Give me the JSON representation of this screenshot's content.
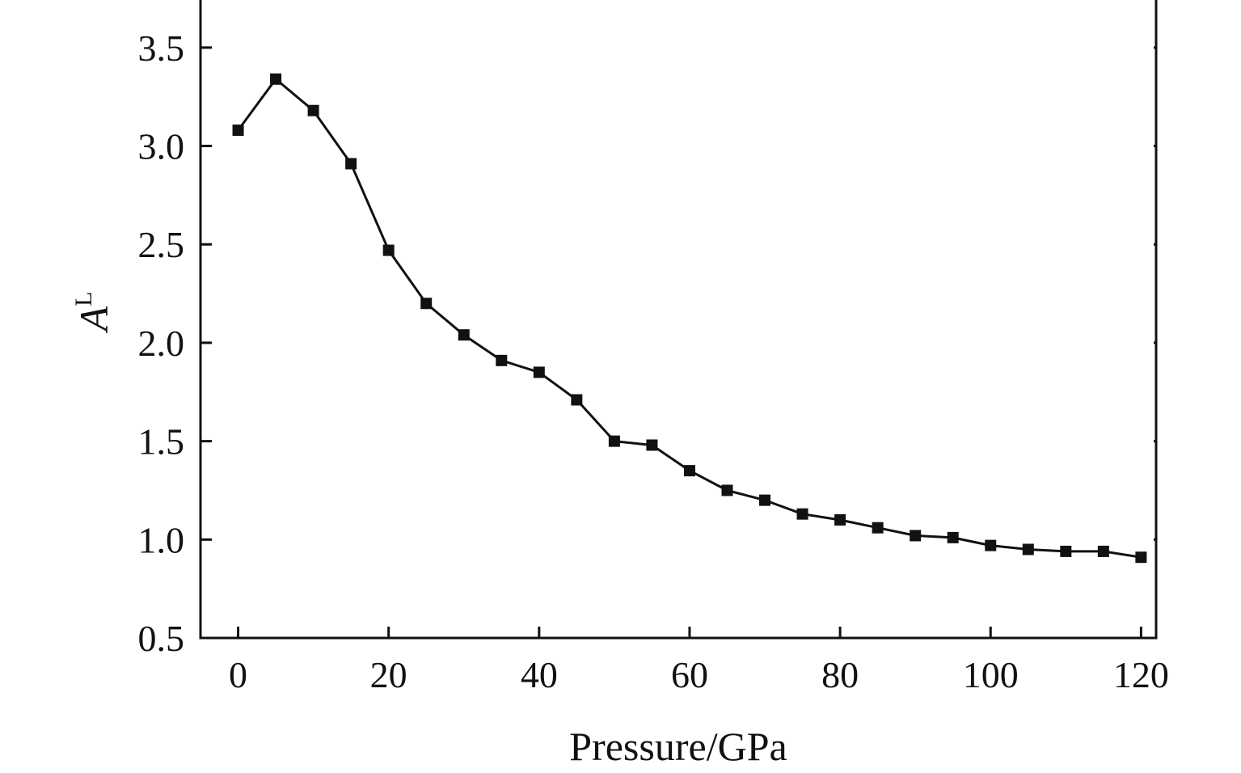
{
  "chart_data": {
    "type": "line",
    "title": "",
    "xlabel": "Pressure/GPa",
    "ylabel": {
      "base": "A",
      "sup": "L"
    },
    "xlim": [
      -5,
      122
    ],
    "ylim": [
      0.5,
      3.75
    ],
    "xticks": [
      0,
      20,
      40,
      60,
      80,
      100,
      120
    ],
    "yticks": [
      0.5,
      1.0,
      1.5,
      2.0,
      2.5,
      3.0,
      3.5
    ],
    "xtick_labels": [
      "0",
      "20",
      "40",
      "60",
      "80",
      "100",
      "120"
    ],
    "ytick_labels": [
      "0.5",
      "1.0",
      "1.5",
      "2.0",
      "2.5",
      "3.0",
      "3.5"
    ],
    "grid": false,
    "legend": "none",
    "series": [
      {
        "marker": "square",
        "color": "#111111",
        "x": [
          0,
          5,
          10,
          15,
          20,
          25,
          30,
          35,
          40,
          45,
          50,
          55,
          60,
          65,
          70,
          75,
          80,
          85,
          90,
          95,
          100,
          105,
          110,
          115,
          120
        ],
        "y": [
          3.08,
          3.34,
          3.18,
          2.91,
          2.47,
          2.2,
          2.04,
          1.91,
          1.85,
          1.71,
          1.5,
          1.48,
          1.35,
          1.25,
          1.2,
          1.13,
          1.1,
          1.06,
          1.02,
          1.01,
          0.97,
          0.95,
          0.94,
          0.94,
          0.91
        ]
      }
    ]
  }
}
